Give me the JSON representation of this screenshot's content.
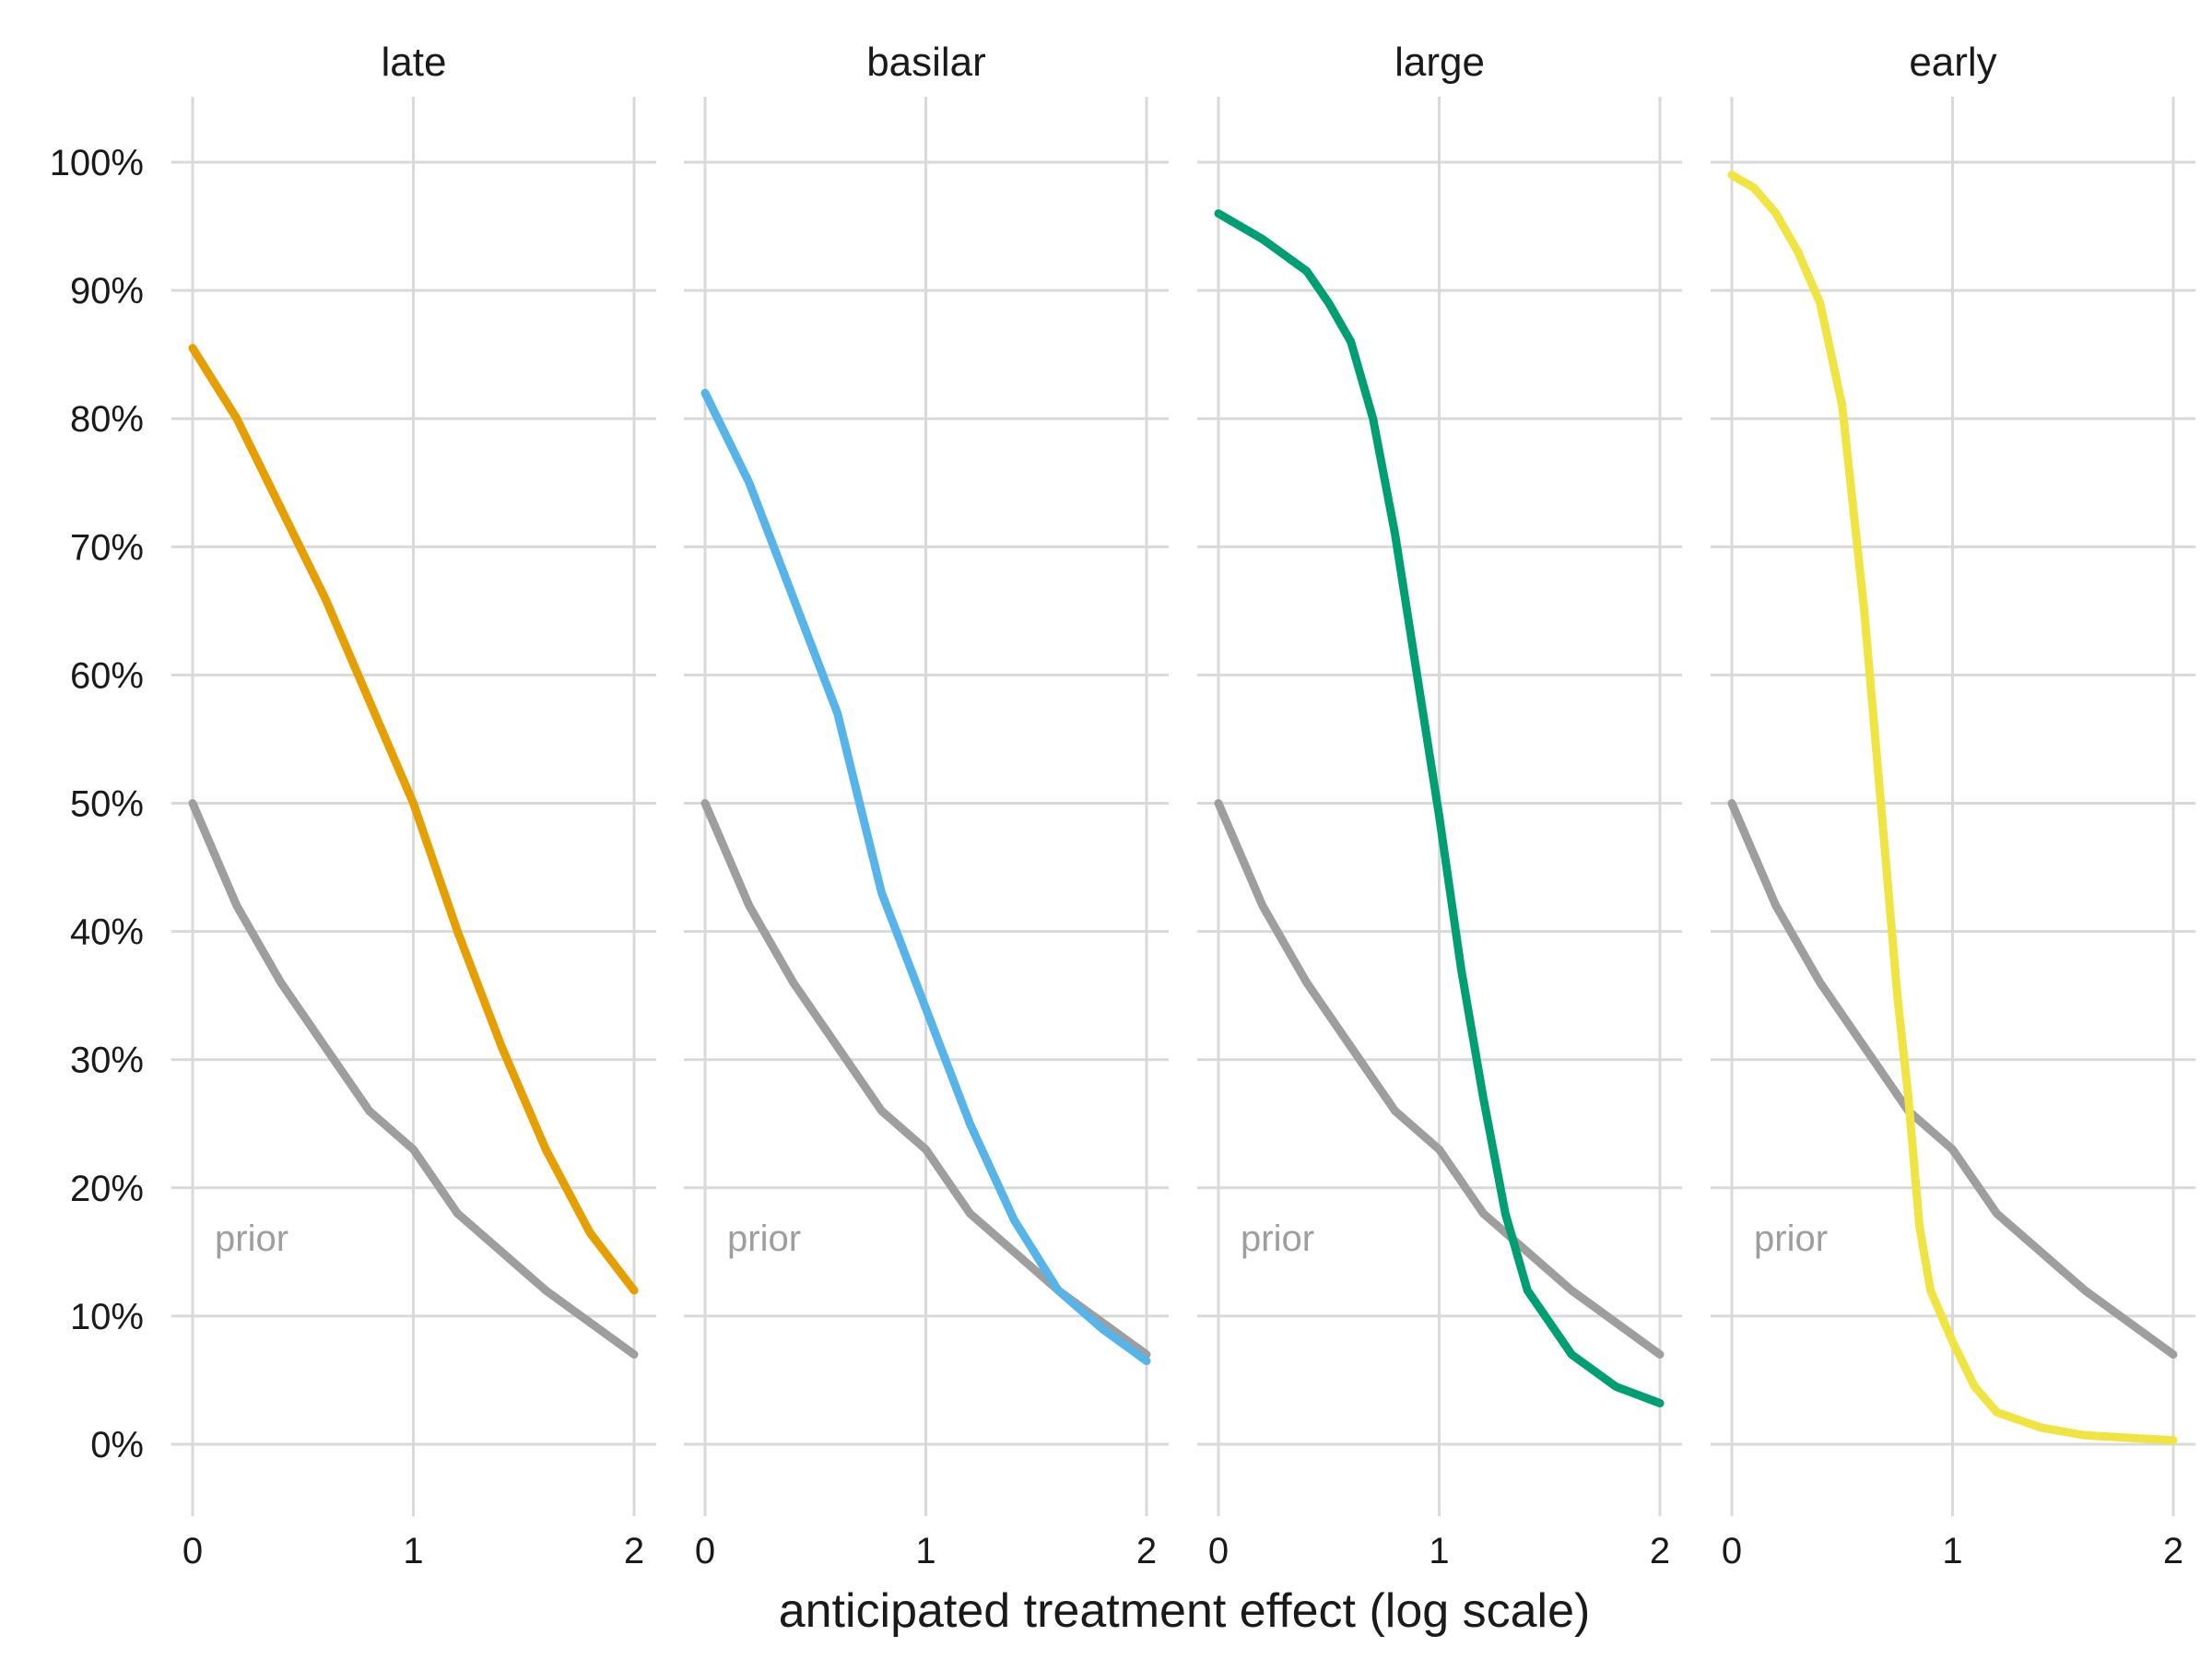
{
  "chart_data": {
    "type": "line",
    "xlabel": "anticipated treatment effect (log scale)",
    "ylabel": "",
    "x_ticks": [
      "0",
      "1",
      "2"
    ],
    "y_ticks": [
      "0%",
      "10%",
      "20%",
      "30%",
      "40%",
      "50%",
      "60%",
      "70%",
      "80%",
      "90%",
      "100%"
    ],
    "xlim": [
      0,
      2
    ],
    "ylim": [
      0,
      100
    ],
    "grid": true,
    "prior_label": "prior",
    "prior_color": "#9e9e9e",
    "x": [
      0,
      0.2,
      0.4,
      0.6,
      0.8,
      1.0,
      1.2,
      1.4,
      1.6,
      1.8,
      2.0
    ],
    "prior": [
      50,
      42,
      36,
      31,
      26,
      23,
      18,
      15,
      12,
      9.5,
      7
    ],
    "panels": [
      {
        "name": "late",
        "color": "#E69F00",
        "points": [
          [
            0,
            85.5
          ],
          [
            0.2,
            80
          ],
          [
            0.4,
            73
          ],
          [
            0.6,
            66
          ],
          [
            0.8,
            58
          ],
          [
            1.0,
            50
          ],
          [
            1.2,
            40
          ],
          [
            1.4,
            31
          ],
          [
            1.6,
            23
          ],
          [
            1.8,
            16.5
          ],
          [
            2.0,
            12
          ]
        ]
      },
      {
        "name": "basilar",
        "color": "#56B4E9",
        "points": [
          [
            0,
            82
          ],
          [
            0.2,
            75
          ],
          [
            0.4,
            66
          ],
          [
            0.6,
            57
          ],
          [
            0.7,
            50
          ],
          [
            0.8,
            43
          ],
          [
            1.0,
            34
          ],
          [
            1.2,
            25
          ],
          [
            1.4,
            17.5
          ],
          [
            1.6,
            12
          ],
          [
            1.8,
            9
          ],
          [
            2.0,
            6.5
          ]
        ]
      },
      {
        "name": "large",
        "color": "#009E73",
        "points": [
          [
            0,
            96
          ],
          [
            0.2,
            94
          ],
          [
            0.4,
            91.5
          ],
          [
            0.5,
            89
          ],
          [
            0.6,
            86
          ],
          [
            0.7,
            80
          ],
          [
            0.8,
            71
          ],
          [
            0.9,
            60
          ],
          [
            1.0,
            49
          ],
          [
            1.1,
            37
          ],
          [
            1.2,
            27
          ],
          [
            1.3,
            18
          ],
          [
            1.4,
            12
          ],
          [
            1.6,
            7
          ],
          [
            1.8,
            4.5
          ],
          [
            2.0,
            3.2
          ]
        ]
      },
      {
        "name": "early",
        "color": "#F0E442",
        "points": [
          [
            0,
            99
          ],
          [
            0.1,
            98
          ],
          [
            0.2,
            96
          ],
          [
            0.3,
            93
          ],
          [
            0.4,
            89
          ],
          [
            0.5,
            81
          ],
          [
            0.6,
            65
          ],
          [
            0.7,
            45
          ],
          [
            0.75,
            35
          ],
          [
            0.8,
            27
          ],
          [
            0.85,
            17
          ],
          [
            0.9,
            12
          ],
          [
            1.0,
            8
          ],
          [
            1.1,
            4.5
          ],
          [
            1.2,
            2.5
          ],
          [
            1.4,
            1.3
          ],
          [
            1.6,
            0.7
          ],
          [
            2.0,
            0.3
          ]
        ]
      }
    ]
  }
}
